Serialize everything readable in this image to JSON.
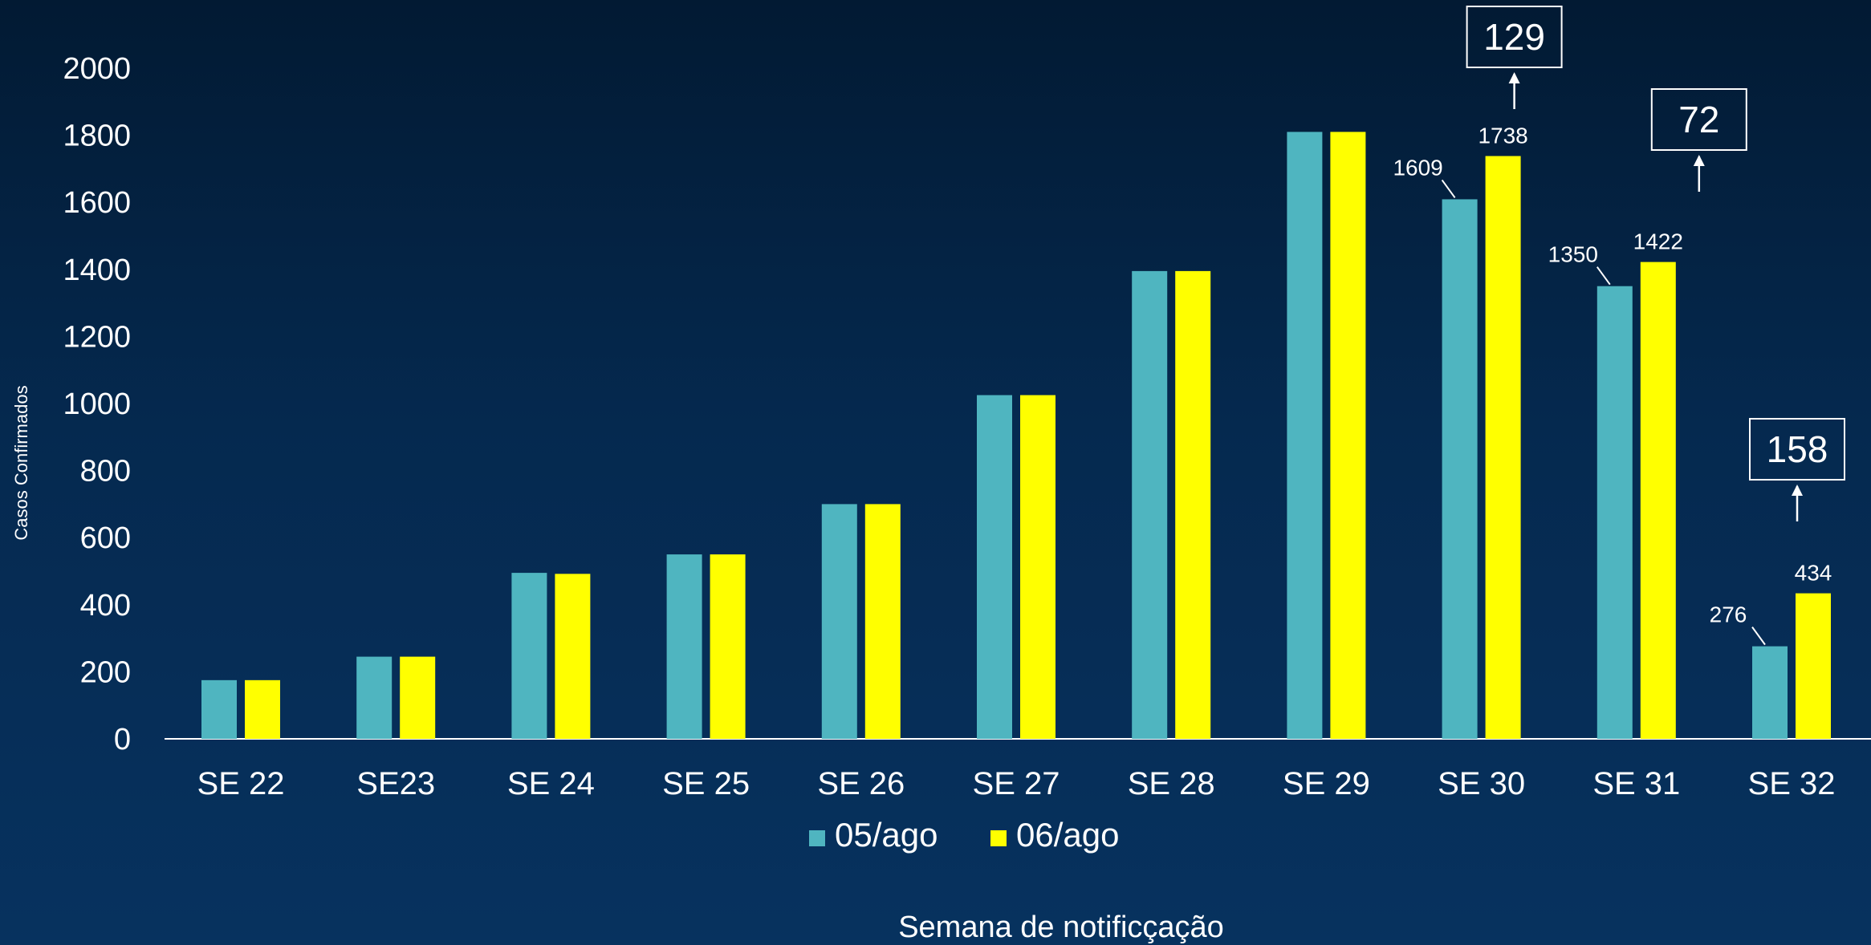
{
  "chart_data": {
    "type": "bar",
    "title": "",
    "xlabel": "Semana de notificçação",
    "ylabel": "Casos Confirmados",
    "ylim": [
      0,
      2000
    ],
    "yticks": [
      0,
      200,
      400,
      600,
      800,
      1000,
      1200,
      1400,
      1600,
      1800,
      2000
    ],
    "grid": false,
    "legend_position": "bottom",
    "categories": [
      "SE 22",
      "SE23",
      "SE 24",
      "SE 25",
      "SE 26",
      "SE 27",
      "SE 28",
      "SE 29",
      "SE 30",
      "SE 31",
      "SE 32"
    ],
    "series": [
      {
        "name": "05/ago",
        "color": "#4fb5c0",
        "values": [
          175,
          245,
          495,
          550,
          700,
          1025,
          1395,
          1810,
          1609,
          1350,
          276
        ]
      },
      {
        "name": "06/ago",
        "color": "#ffff00",
        "values": [
          175,
          245,
          492,
          550,
          700,
          1025,
          1395,
          1810,
          1738,
          1422,
          434
        ]
      }
    ],
    "data_labels": [
      {
        "category_index": 8,
        "series_index": 0,
        "text": "1609"
      },
      {
        "category_index": 8,
        "series_index": 1,
        "text": "1738"
      },
      {
        "category_index": 9,
        "series_index": 0,
        "text": "1350"
      },
      {
        "category_index": 9,
        "series_index": 1,
        "text": "1422"
      },
      {
        "category_index": 10,
        "series_index": 0,
        "text": "276"
      },
      {
        "category_index": 10,
        "series_index": 1,
        "text": "434"
      }
    ],
    "increment_boxes": [
      {
        "category_index": 8,
        "text": "129"
      },
      {
        "category_index": 9,
        "text": "72"
      },
      {
        "category_index": 10,
        "text": "158"
      }
    ]
  }
}
